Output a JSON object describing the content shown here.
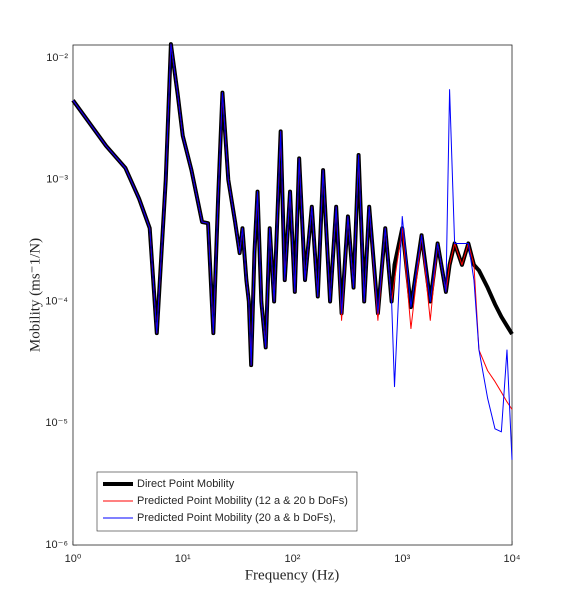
{
  "chart_data": {
    "type": "line",
    "xlabel": "Frequency (Hz)",
    "ylabel": "Mobility (ms⁻1/N)",
    "xscale": "log",
    "yscale": "log",
    "grid": true,
    "legend": "lower left",
    "xlim": [
      1,
      10000
    ],
    "ylim": [
      1e-06,
      0.0128
    ],
    "xticks": [
      {
        "value": 1,
        "label": "10⁰"
      },
      {
        "value": 10,
        "label": "10¹"
      },
      {
        "value": 100,
        "label": "10²"
      },
      {
        "value": 1000,
        "label": "10³"
      },
      {
        "value": 10000,
        "label": "10⁴"
      }
    ],
    "yticks": [
      {
        "value": 1e-06,
        "label": "10⁻⁶"
      },
      {
        "value": 1e-05,
        "label": "10⁻⁵"
      },
      {
        "value": 0.0001,
        "label": "10⁻⁴"
      },
      {
        "value": 0.001,
        "label": "10⁻³"
      },
      {
        "value": 0.01,
        "label": "10⁻²"
      }
    ],
    "x": [
      1,
      2,
      3,
      4,
      5,
      5.8,
      7,
      7.8,
      9,
      10,
      12,
      15,
      17,
      19,
      21,
      23,
      26,
      30,
      33,
      35,
      38,
      40,
      42,
      45,
      48,
      52,
      57,
      62,
      68,
      78,
      85,
      95,
      105,
      115,
      130,
      150,
      170,
      190,
      220,
      250,
      280,
      320,
      360,
      400,
      450,
      500,
      600,
      700,
      800,
      850,
      1000,
      1200,
      1500,
      1800,
      2100,
      2500,
      2700,
      3000,
      3500,
      4000,
      4500,
      5000,
      6000,
      7000,
      8000,
      9000,
      10000
    ],
    "series": [
      {
        "name": "Direct Point Mobility",
        "color": "#000000",
        "width": 4,
        "values": [
          0.0045,
          0.0019,
          0.00125,
          0.0007,
          0.0004,
          5.5e-05,
          0.001,
          0.013,
          0.005,
          0.0023,
          0.0012,
          0.00045,
          0.00044,
          5.5e-05,
          0.0007,
          0.0052,
          0.001,
          0.00045,
          0.00025,
          0.0004,
          0.00015,
          0.0001,
          3e-05,
          0.00025,
          0.0008,
          0.0001,
          4.2e-05,
          0.0004,
          0.0001,
          0.0025,
          0.00015,
          0.0008,
          0.00012,
          0.0015,
          0.00015,
          0.0006,
          0.00011,
          0.0012,
          0.0001,
          0.0006,
          8e-05,
          0.0005,
          0.00013,
          0.0016,
          0.0001,
          0.0006,
          8e-05,
          0.0004,
          0.0001,
          0.0002,
          0.0004,
          9e-05,
          0.00035,
          0.0001,
          0.0003,
          0.00012,
          0.0002,
          0.0003,
          0.0002,
          0.0003,
          0.0002,
          0.00018,
          0.00013,
          9.5e-05,
          7.5e-05,
          6.3e-05,
          5.4e-05
        ]
      },
      {
        "name": "Predicted Point Mobility (12 a & 20 b DoFs)",
        "color": "#ff0000",
        "width": 1,
        "values": [
          0.0045,
          0.0019,
          0.00125,
          0.0007,
          0.0004,
          5.5e-05,
          0.001,
          0.013,
          0.005,
          0.0023,
          0.0012,
          0.00045,
          0.00044,
          5.5e-05,
          0.0007,
          0.0052,
          0.001,
          0.00045,
          0.00025,
          0.0004,
          0.00015,
          0.0001,
          3e-05,
          0.00025,
          0.0008,
          0.0001,
          4.2e-05,
          0.0004,
          0.0001,
          0.0025,
          0.00015,
          0.0008,
          0.00012,
          0.0015,
          0.00015,
          0.0006,
          0.00011,
          0.0012,
          0.0001,
          0.0006,
          7e-05,
          0.0005,
          0.00013,
          0.0016,
          0.0001,
          0.0006,
          7e-05,
          0.0004,
          0.0001,
          0.00015,
          0.0004,
          6e-05,
          0.00035,
          7e-05,
          0.0003,
          0.00012,
          0.0002,
          0.0003,
          0.0002,
          0.0003,
          0.0002,
          4e-05,
          2.7e-05,
          2.2e-05,
          1.8e-05,
          1.5e-05,
          1.3e-05
        ]
      },
      {
        "name": "Predicted Point Mobility (20 a & b DoFs),",
        "color": "#0000ff",
        "width": 1,
        "values": [
          0.0045,
          0.0019,
          0.00125,
          0.0007,
          0.0004,
          5.5e-05,
          0.001,
          0.013,
          0.005,
          0.0023,
          0.0012,
          0.00045,
          0.00044,
          5.5e-05,
          0.0007,
          0.0052,
          0.001,
          0.00045,
          0.00025,
          0.0004,
          0.00015,
          0.0001,
          3e-05,
          0.00025,
          0.0008,
          0.0001,
          4.2e-05,
          0.0004,
          0.0001,
          0.0025,
          0.00015,
          0.0008,
          0.00012,
          0.0015,
          0.00015,
          0.0006,
          0.00011,
          0.0012,
          0.0001,
          0.0006,
          8e-05,
          0.0005,
          0.00013,
          0.0016,
          0.0001,
          0.0006,
          8e-05,
          0.0004,
          0.0001,
          2e-05,
          0.0005,
          9e-05,
          0.00035,
          0.0001,
          0.0003,
          0.00012,
          0.0055,
          0.0003,
          0.0003,
          0.0003,
          0.00015,
          4e-05,
          1.6e-05,
          9e-06,
          8.5e-06,
          4e-05,
          5e-06
        ]
      }
    ]
  }
}
